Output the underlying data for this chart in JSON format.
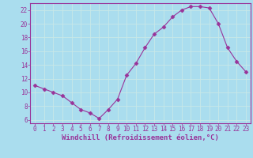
{
  "x": [
    0,
    1,
    2,
    3,
    4,
    5,
    6,
    7,
    8,
    9,
    10,
    11,
    12,
    13,
    14,
    15,
    16,
    17,
    18,
    19,
    20,
    21,
    22,
    23
  ],
  "y": [
    11,
    10.5,
    10,
    9.5,
    8.5,
    7.5,
    7,
    6.2,
    7.5,
    9,
    12.5,
    14.2,
    16.5,
    18.5,
    19.5,
    21,
    22,
    22.5,
    22.5,
    22.3,
    20,
    16.5,
    14.5,
    13
  ],
  "line_color": "#993399",
  "marker": "D",
  "marker_size": 2.5,
  "background_color": "#aaddee",
  "grid_color": "#bbdddd",
  "xlabel": "Windchill (Refroidissement éolien,°C)",
  "xlabel_fontsize": 6.5,
  "xlabel_color": "#993399",
  "tick_label_color": "#993399",
  "ylim": [
    5.5,
    23
  ],
  "xlim": [
    -0.5,
    23.5
  ],
  "yticks": [
    6,
    8,
    10,
    12,
    14,
    16,
    18,
    20,
    22
  ],
  "xticks": [
    0,
    1,
    2,
    3,
    4,
    5,
    6,
    7,
    8,
    9,
    10,
    11,
    12,
    13,
    14,
    15,
    16,
    17,
    18,
    19,
    20,
    21,
    22,
    23
  ],
  "tick_fontsize": 5.5,
  "spine_color": "#993399",
  "axis_line_color": "#993399"
}
